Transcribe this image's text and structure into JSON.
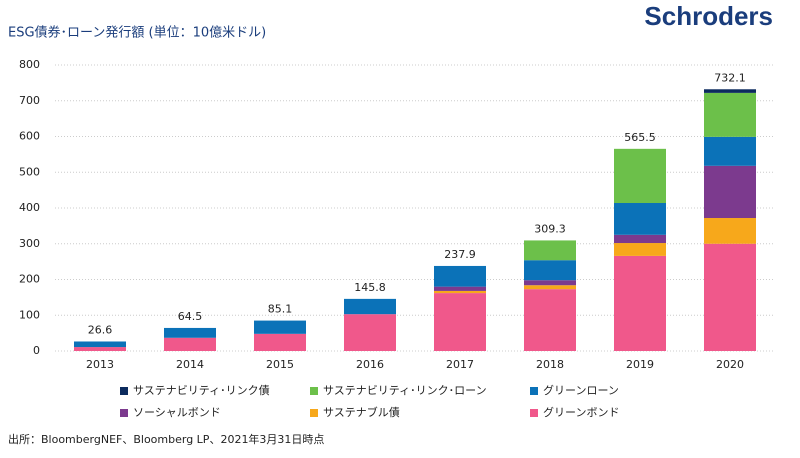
{
  "brand": "Schroders",
  "source": "出所：BloombergNEF、Bloomberg LP、2021年3月31日時点",
  "chart_data": {
    "type": "stacked-bar",
    "title": "ESG債券･ローン発行額 (単位：10億米ドル)",
    "categories": [
      "2013",
      "2014",
      "2015",
      "2016",
      "2017",
      "2018",
      "2019",
      "2020"
    ],
    "series": [
      {
        "name": "グリーンボンド",
        "color": "#f0588b",
        "values": [
          11,
          37,
          48,
          103,
          162,
          173,
          266,
          300
        ]
      },
      {
        "name": "サステナブル債",
        "color": "#f7a81b",
        "values": [
          0,
          0,
          0,
          0,
          6,
          11,
          36,
          72
        ]
      },
      {
        "name": "ソーシャルボンド",
        "color": "#7c3a8e",
        "values": [
          0,
          0,
          0,
          0,
          12,
          14,
          23,
          146
        ]
      },
      {
        "name": "グリーンローン",
        "color": "#0b72b8",
        "values": [
          15.6,
          27.5,
          37.1,
          42.8,
          57.9,
          56,
          89,
          81
        ]
      },
      {
        "name": "サステナビリティ･リンク･ローン",
        "color": "#6cc04a",
        "values": [
          0,
          0,
          0,
          0,
          0,
          55.3,
          151.5,
          123
        ]
      },
      {
        "name": "サステナビリティ･リンク債",
        "color": "#0c2b5e",
        "values": [
          0,
          0,
          0,
          0,
          0,
          0,
          0,
          10.1
        ]
      }
    ],
    "totals": [
      26.6,
      64.5,
      85.1,
      145.8,
      237.9,
      309.3,
      565.5,
      732.1
    ],
    "ylim": [
      0,
      800
    ],
    "yticks": [
      0,
      100,
      200,
      300,
      400,
      500,
      600,
      700,
      800
    ],
    "grid": true
  }
}
